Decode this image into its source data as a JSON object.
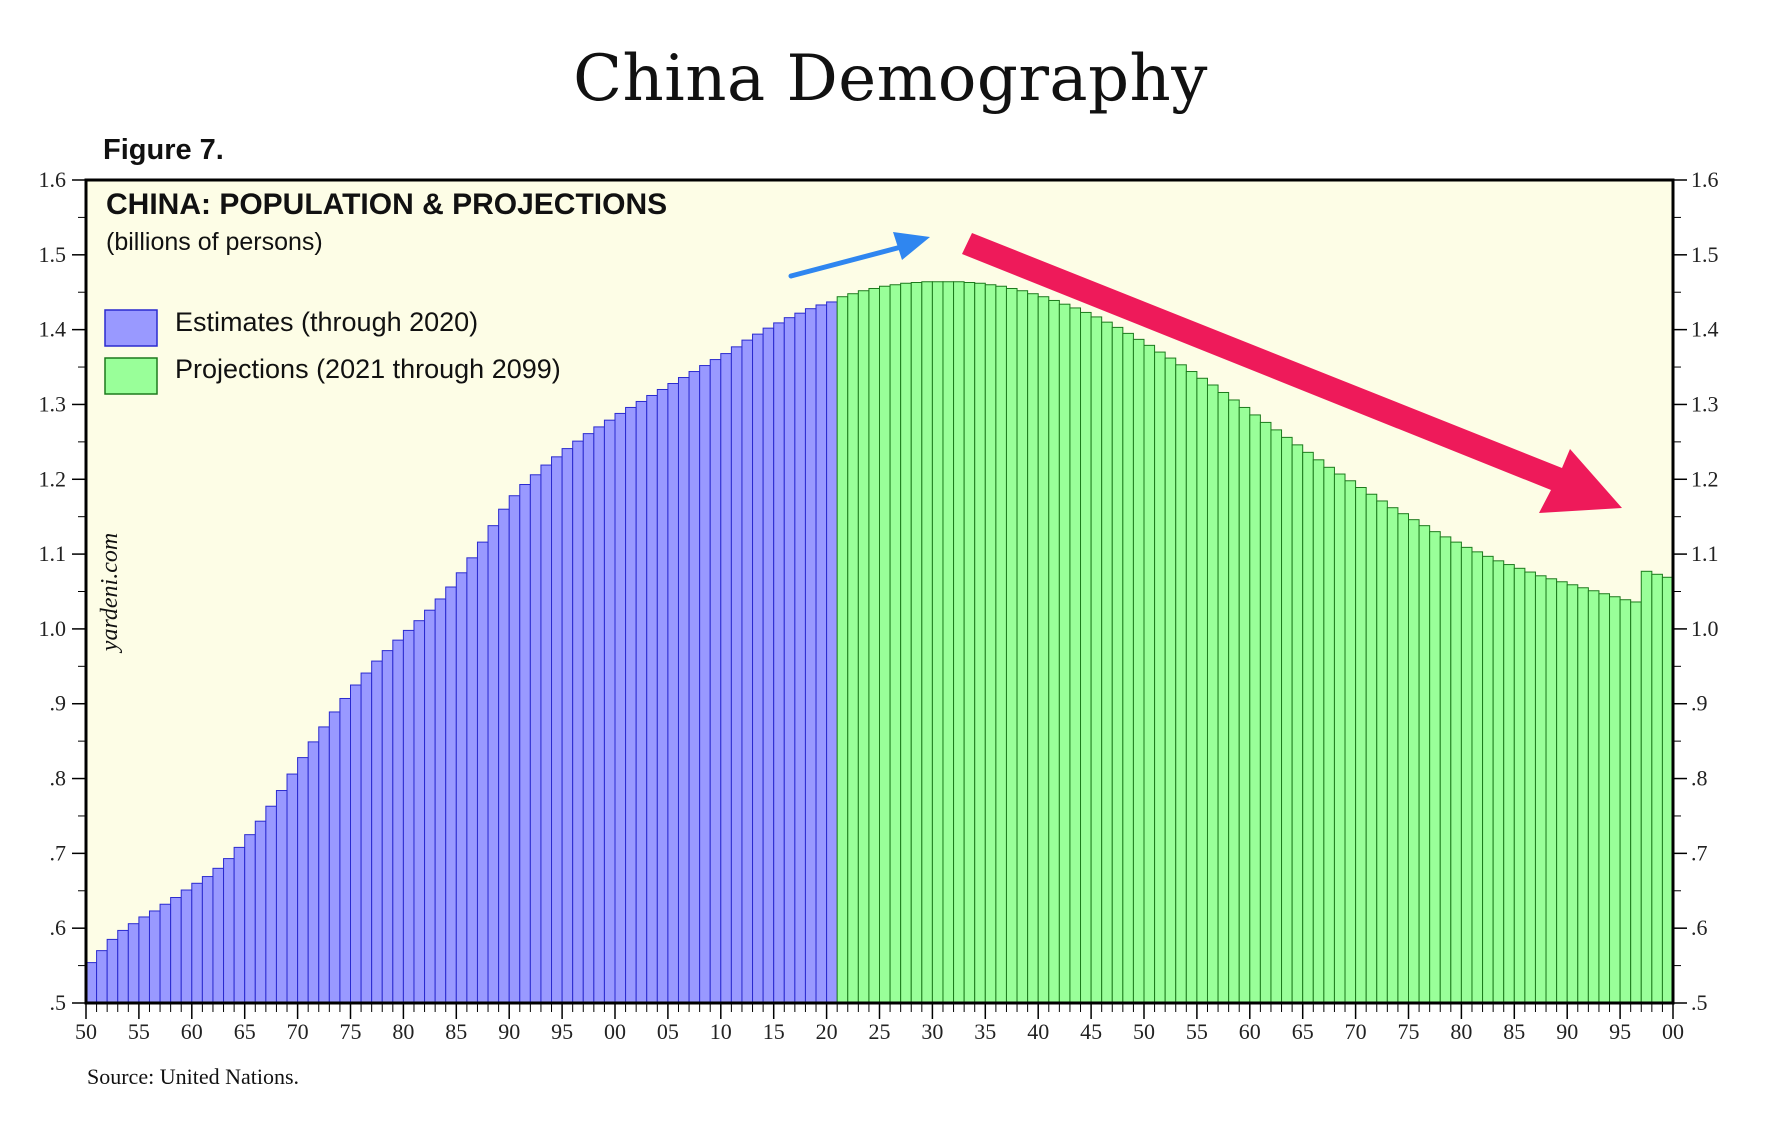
{
  "page": {
    "title": "China Demography",
    "figure_label": "Figure 7.",
    "source": "Source: United Nations.",
    "watermark": "yardeni.com"
  },
  "colors": {
    "background_plot": "#fdfde6",
    "estimates_fill": "#9999ff",
    "estimates_stroke": "#2a2acf",
    "projections_fill": "#99ff99",
    "projections_stroke": "#1c7a1c",
    "up_arrow": "#2f86f0",
    "down_arrow": "#ee1a5a"
  },
  "icons": {
    "up_arrow": "arrow-up-right-icon",
    "down_arrow": "arrow-down-right-icon"
  },
  "chart_data": {
    "type": "bar",
    "title": "CHINA: POPULATION & PROJECTIONS",
    "subtitle": "(billions of persons)",
    "xlabel": "",
    "ylabel": "",
    "ylim": [
      0.5,
      1.6
    ],
    "y_ticks": [
      0.5,
      0.6,
      0.7,
      0.8,
      0.9,
      1.0,
      1.1,
      1.2,
      1.3,
      1.4,
      1.5,
      1.6
    ],
    "y_tick_labels": [
      ".5",
      ".6",
      ".7",
      ".8",
      ".9",
      "1.0",
      "1.1",
      "1.2",
      "1.3",
      "1.4",
      "1.5",
      "1.6"
    ],
    "x_range": [
      1950,
      2100
    ],
    "x_ticks": [
      1950,
      1955,
      1960,
      1965,
      1970,
      1975,
      1980,
      1985,
      1990,
      1995,
      2000,
      2005,
      2010,
      2015,
      2020,
      2025,
      2030,
      2035,
      2040,
      2045,
      2050,
      2055,
      2060,
      2065,
      2070,
      2075,
      2080,
      2085,
      2090,
      2095,
      2100
    ],
    "x_tick_labels": [
      "50",
      "55",
      "60",
      "65",
      "70",
      "75",
      "80",
      "85",
      "90",
      "95",
      "00",
      "05",
      "10",
      "15",
      "20",
      "25",
      "30",
      "35",
      "40",
      "45",
      "50",
      "55",
      "60",
      "65",
      "70",
      "75",
      "80",
      "85",
      "90",
      "95",
      "00"
    ],
    "grid": false,
    "legend_position": "top-left",
    "series": [
      {
        "name": "Estimates (through 2020)",
        "x_start": 1950,
        "values": [
          0.554,
          0.57,
          0.585,
          0.597,
          0.606,
          0.615,
          0.623,
          0.632,
          0.641,
          0.651,
          0.66,
          0.669,
          0.68,
          0.693,
          0.708,
          0.725,
          0.743,
          0.763,
          0.784,
          0.806,
          0.828,
          0.849,
          0.869,
          0.889,
          0.907,
          0.925,
          0.941,
          0.957,
          0.971,
          0.985,
          0.998,
          1.011,
          1.025,
          1.04,
          1.056,
          1.075,
          1.095,
          1.116,
          1.138,
          1.16,
          1.178,
          1.193,
          1.206,
          1.219,
          1.23,
          1.241,
          1.251,
          1.261,
          1.27,
          1.279,
          1.288,
          1.296,
          1.304,
          1.312,
          1.32,
          1.328,
          1.336,
          1.344,
          1.352,
          1.36,
          1.368,
          1.377,
          1.386,
          1.394,
          1.402,
          1.409,
          1.416,
          1.422,
          1.428,
          1.433,
          1.437
        ]
      },
      {
        "name": "Projections (2021 through 2099)",
        "x_start": 2021,
        "values": [
          1.444,
          1.448,
          1.452,
          1.455,
          1.458,
          1.46,
          1.462,
          1.463,
          1.464,
          1.464,
          1.464,
          1.464,
          1.463,
          1.462,
          1.46,
          1.458,
          1.455,
          1.452,
          1.448,
          1.444,
          1.439,
          1.434,
          1.429,
          1.423,
          1.417,
          1.41,
          1.403,
          1.395,
          1.387,
          1.379,
          1.37,
          1.362,
          1.353,
          1.344,
          1.335,
          1.326,
          1.316,
          1.306,
          1.296,
          1.286,
          1.276,
          1.266,
          1.256,
          1.246,
          1.236,
          1.226,
          1.216,
          1.207,
          1.198,
          1.189,
          1.18,
          1.171,
          1.162,
          1.154,
          1.146,
          1.138,
          1.13,
          1.123,
          1.116,
          1.109,
          1.103,
          1.097,
          1.091,
          1.086,
          1.081,
          1.076,
          1.071,
          1.067,
          1.063,
          1.059,
          1.055,
          1.051,
          1.047,
          1.043,
          1.039,
          1.036,
          1.077,
          1.073,
          1.069
        ]
      }
    ]
  }
}
